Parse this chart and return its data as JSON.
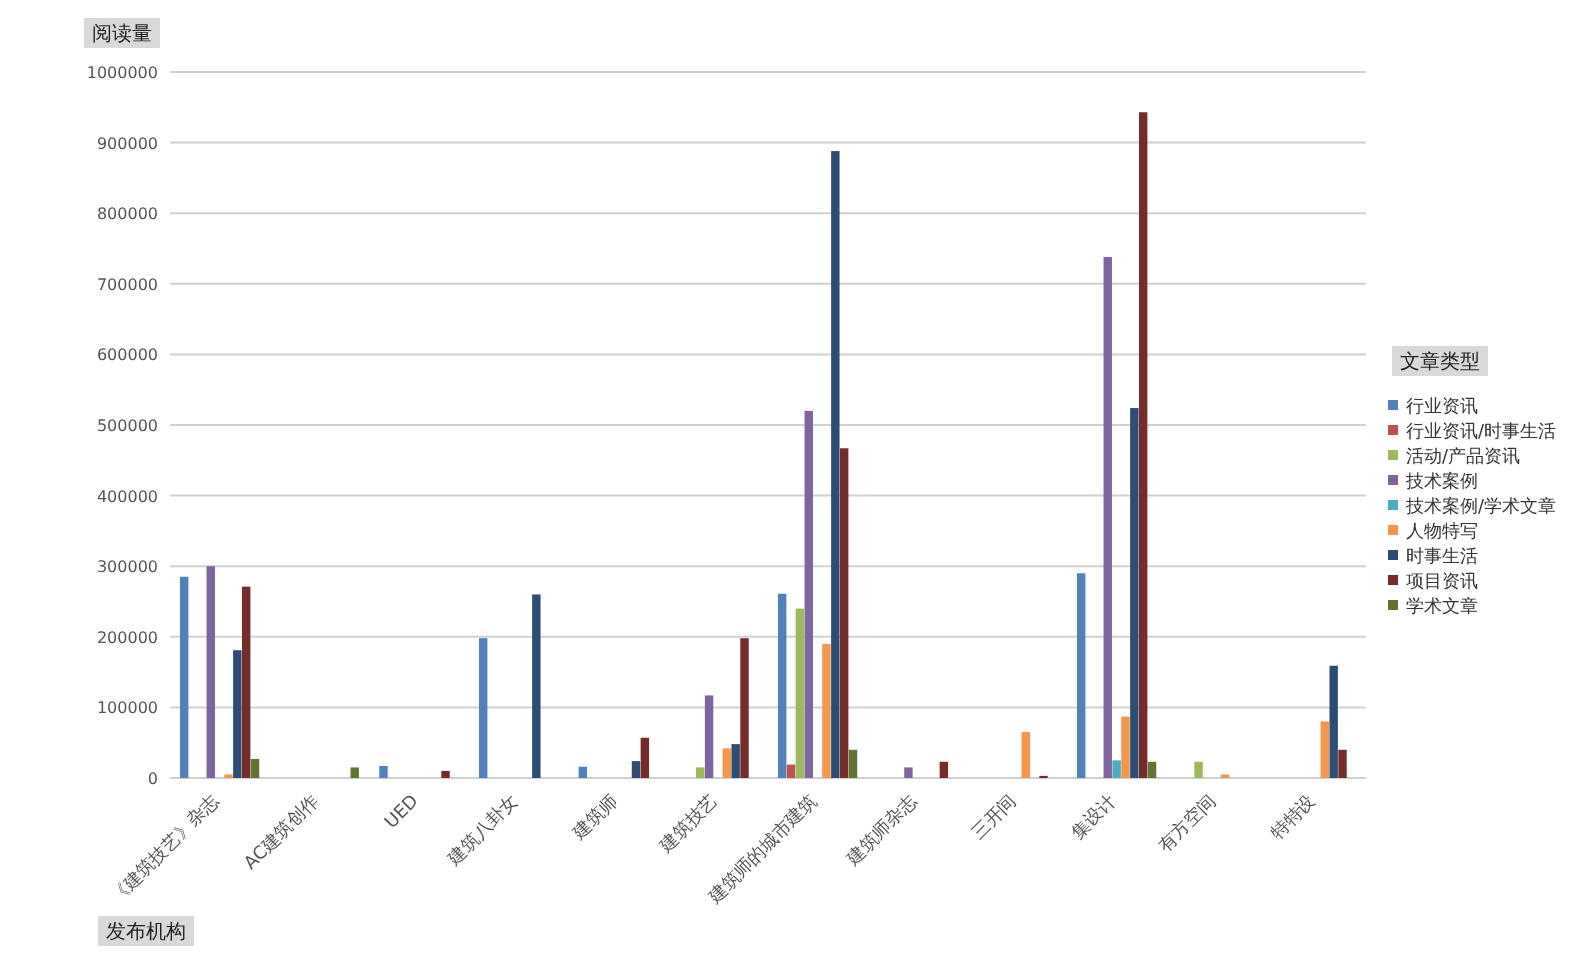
{
  "chart_data": {
    "type": "bar",
    "ylabel": "阅读量",
    "xlabel": "发布机构",
    "legend_title": "文章类型",
    "legend": "right",
    "grid": "y",
    "categories": [
      "《建筑技艺》杂志",
      "AC建筑创作",
      "UED",
      "建筑八卦女",
      "建筑师",
      "建筑技艺",
      "建筑师的城市建筑",
      "建筑师杂志",
      "三开间",
      "集设计",
      "有方空间",
      "特特设"
    ],
    "ylim": [
      0,
      1000000
    ],
    "yticks": [
      0,
      100000,
      200000,
      300000,
      400000,
      500000,
      600000,
      700000,
      800000,
      900000,
      1000000
    ],
    "series": [
      {
        "name": "行业资讯",
        "color": "#4f81bd",
        "values": [
          285000,
          null,
          17000,
          198000,
          16000,
          null,
          261000,
          null,
          null,
          290000,
          null,
          null
        ]
      },
      {
        "name": "行业资讯/时事生活",
        "color": "#c0504d",
        "values": [
          null,
          null,
          null,
          null,
          null,
          null,
          19000,
          null,
          null,
          null,
          null,
          null
        ]
      },
      {
        "name": "活动/产品资讯",
        "color": "#9bbb59",
        "values": [
          null,
          null,
          null,
          null,
          null,
          15000,
          240000,
          null,
          null,
          null,
          23000,
          null
        ]
      },
      {
        "name": "技术案例",
        "color": "#8064a2",
        "values": [
          300000,
          null,
          null,
          null,
          null,
          117000,
          520000,
          15000,
          null,
          738000,
          null,
          null
        ]
      },
      {
        "name": "技术案例/学术文章",
        "color": "#4bacc6",
        "values": [
          null,
          null,
          null,
          null,
          null,
          null,
          null,
          null,
          null,
          25000,
          null,
          null
        ]
      },
      {
        "name": "人物特写",
        "color": "#f79646",
        "values": [
          5000,
          null,
          null,
          null,
          null,
          42000,
          190000,
          null,
          65000,
          87000,
          5000,
          80000
        ]
      },
      {
        "name": "时事生活",
        "color": "#2c4d75",
        "values": [
          181000,
          null,
          null,
          260000,
          24000,
          48000,
          888000,
          null,
          null,
          524000,
          null,
          159000
        ]
      },
      {
        "name": "项目资讯",
        "color": "#772c2a",
        "values": [
          271000,
          null,
          10000,
          null,
          57000,
          198000,
          467000,
          23000,
          3000,
          943000,
          null,
          40000
        ]
      },
      {
        "name": "学术文章",
        "color": "#5f7530",
        "values": [
          27000,
          15000,
          null,
          null,
          null,
          null,
          40000,
          null,
          null,
          23000,
          null,
          null
        ]
      }
    ]
  }
}
